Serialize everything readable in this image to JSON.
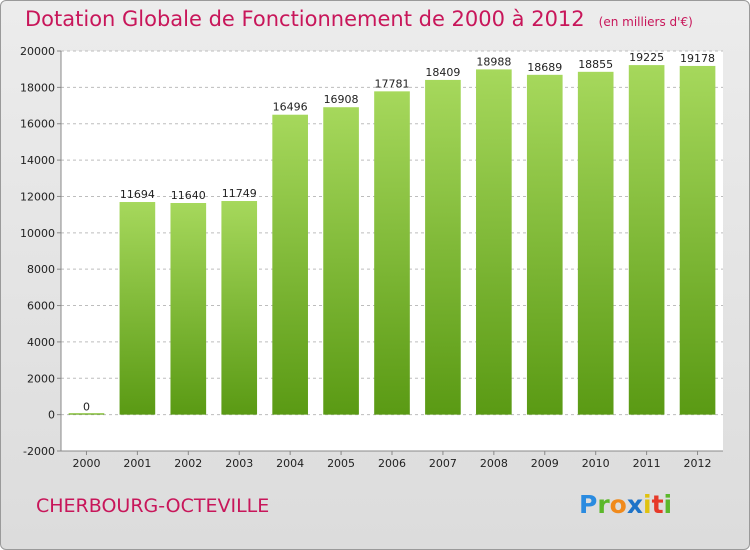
{
  "header": {
    "title": "Dotation Globale de Fonctionnement de 2000 à 2012",
    "subtitle": "(en milliers d'€)"
  },
  "footer": {
    "city": "CHERBOURG-OCTEVILLE",
    "logo": "Proxiti"
  },
  "colors": {
    "title": "#c8165a",
    "bar_light": "#a6d85c",
    "bar_dark": "#5a9a14",
    "grid": "#bdbdbd"
  },
  "chart_data": {
    "type": "bar",
    "title": "Dotation Globale de Fonctionnement de 2000 à 2012",
    "subtitle": "(en milliers d'€)",
    "xlabel": "",
    "ylabel": "",
    "categories": [
      "2000",
      "2001",
      "2002",
      "2003",
      "2004",
      "2005",
      "2006",
      "2007",
      "2008",
      "2009",
      "2010",
      "2011",
      "2012"
    ],
    "values": [
      0,
      11694,
      11640,
      11749,
      16496,
      16908,
      17781,
      18409,
      18988,
      18689,
      18855,
      19225,
      19178
    ],
    "ylim": [
      -2000,
      20000
    ],
    "yticks": [
      -2000,
      0,
      2000,
      4000,
      6000,
      8000,
      10000,
      12000,
      14000,
      16000,
      18000,
      20000
    ],
    "grid": true
  }
}
